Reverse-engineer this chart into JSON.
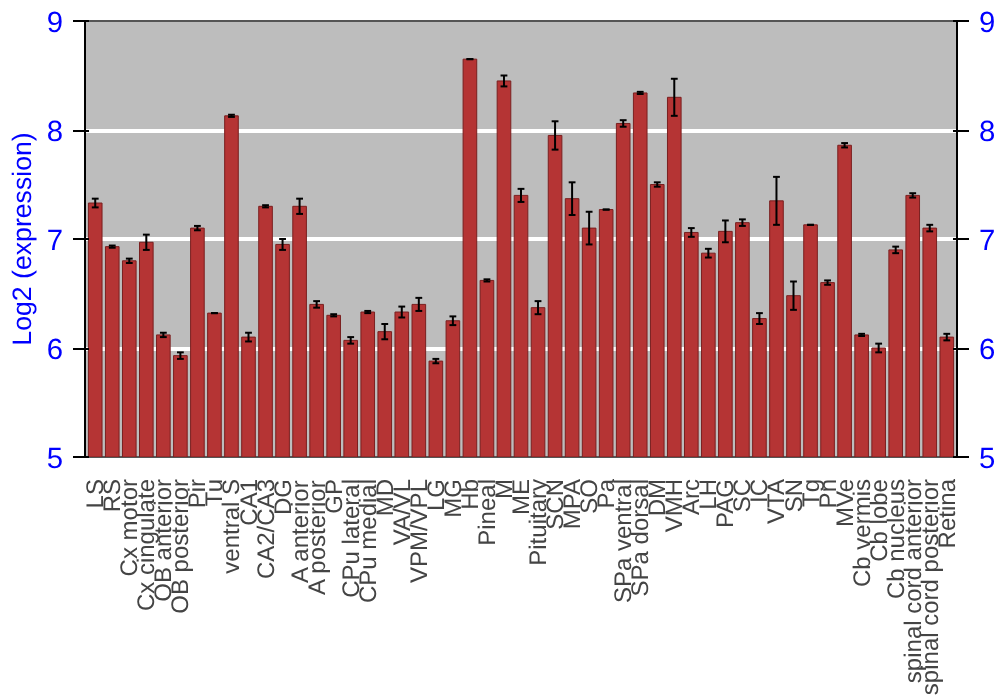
{
  "chart_data": {
    "type": "bar",
    "ylabel": "Log2 (expression)",
    "categories": [
      "LS",
      "RS",
      "Cx motor",
      "Cx cingulate",
      "OB anterior",
      "OB posterior",
      "Pir",
      "Tu",
      "ventral S",
      "CA1",
      "CA2/CA3",
      "DG",
      "A anterior",
      "A posterior",
      "GP",
      "CPu lateral",
      "CPu medial",
      "MD",
      "VA/VL",
      "VPM/VPL",
      "LG",
      "MG",
      "Hb",
      "Pineal",
      "M",
      "ME",
      "Pituitary",
      "SCN",
      "MPA",
      "SO",
      "Pa",
      "SPa ventral",
      "SPa dorsal",
      "DM",
      "VMH",
      "Arc",
      "LH",
      "PAG",
      "SC",
      "IC",
      "VTA",
      "SN",
      "Tg",
      "Pn",
      "MVe",
      "Cb vermis",
      "Cb lobe",
      "Cb nucleus",
      "spinal cord anterior",
      "spinal cord posterior",
      "Retina"
    ],
    "values": [
      7.33,
      6.93,
      6.8,
      6.97,
      6.12,
      5.93,
      7.1,
      6.32,
      8.13,
      6.1,
      7.3,
      6.95,
      7.3,
      6.4,
      6.3,
      6.07,
      6.33,
      6.15,
      6.33,
      6.4,
      5.88,
      6.25,
      8.65,
      6.62,
      8.45,
      7.4,
      6.37,
      7.95,
      7.37,
      7.1,
      7.27,
      8.06,
      8.34,
      7.5,
      8.3,
      7.06,
      6.87,
      7.07,
      7.15,
      6.27,
      7.35,
      6.48,
      7.13,
      6.6,
      7.86,
      6.12,
      6.0,
      6.9,
      7.4,
      7.1,
      6.1
    ],
    "errors": [
      0.04,
      0.01,
      0.02,
      0.07,
      0.02,
      0.03,
      0.02,
      0.0,
      0.01,
      0.04,
      0.01,
      0.05,
      0.07,
      0.03,
      0.01,
      0.03,
      0.01,
      0.07,
      0.05,
      0.06,
      0.02,
      0.04,
      0.0,
      0.01,
      0.05,
      0.06,
      0.06,
      0.13,
      0.15,
      0.15,
      0.0,
      0.03,
      0.01,
      0.02,
      0.17,
      0.04,
      0.04,
      0.1,
      0.03,
      0.05,
      0.22,
      0.13,
      0.0,
      0.02,
      0.02,
      0.01,
      0.04,
      0.03,
      0.02,
      0.03,
      0.03
    ],
    "color": "#b53434",
    "ylim": [
      5,
      9
    ],
    "yticks": [
      5,
      6,
      7,
      8,
      9
    ],
    "y2lim": [
      5,
      9
    ],
    "y2ticks": [
      5,
      6,
      7,
      8,
      9
    ],
    "grid": "y"
  }
}
